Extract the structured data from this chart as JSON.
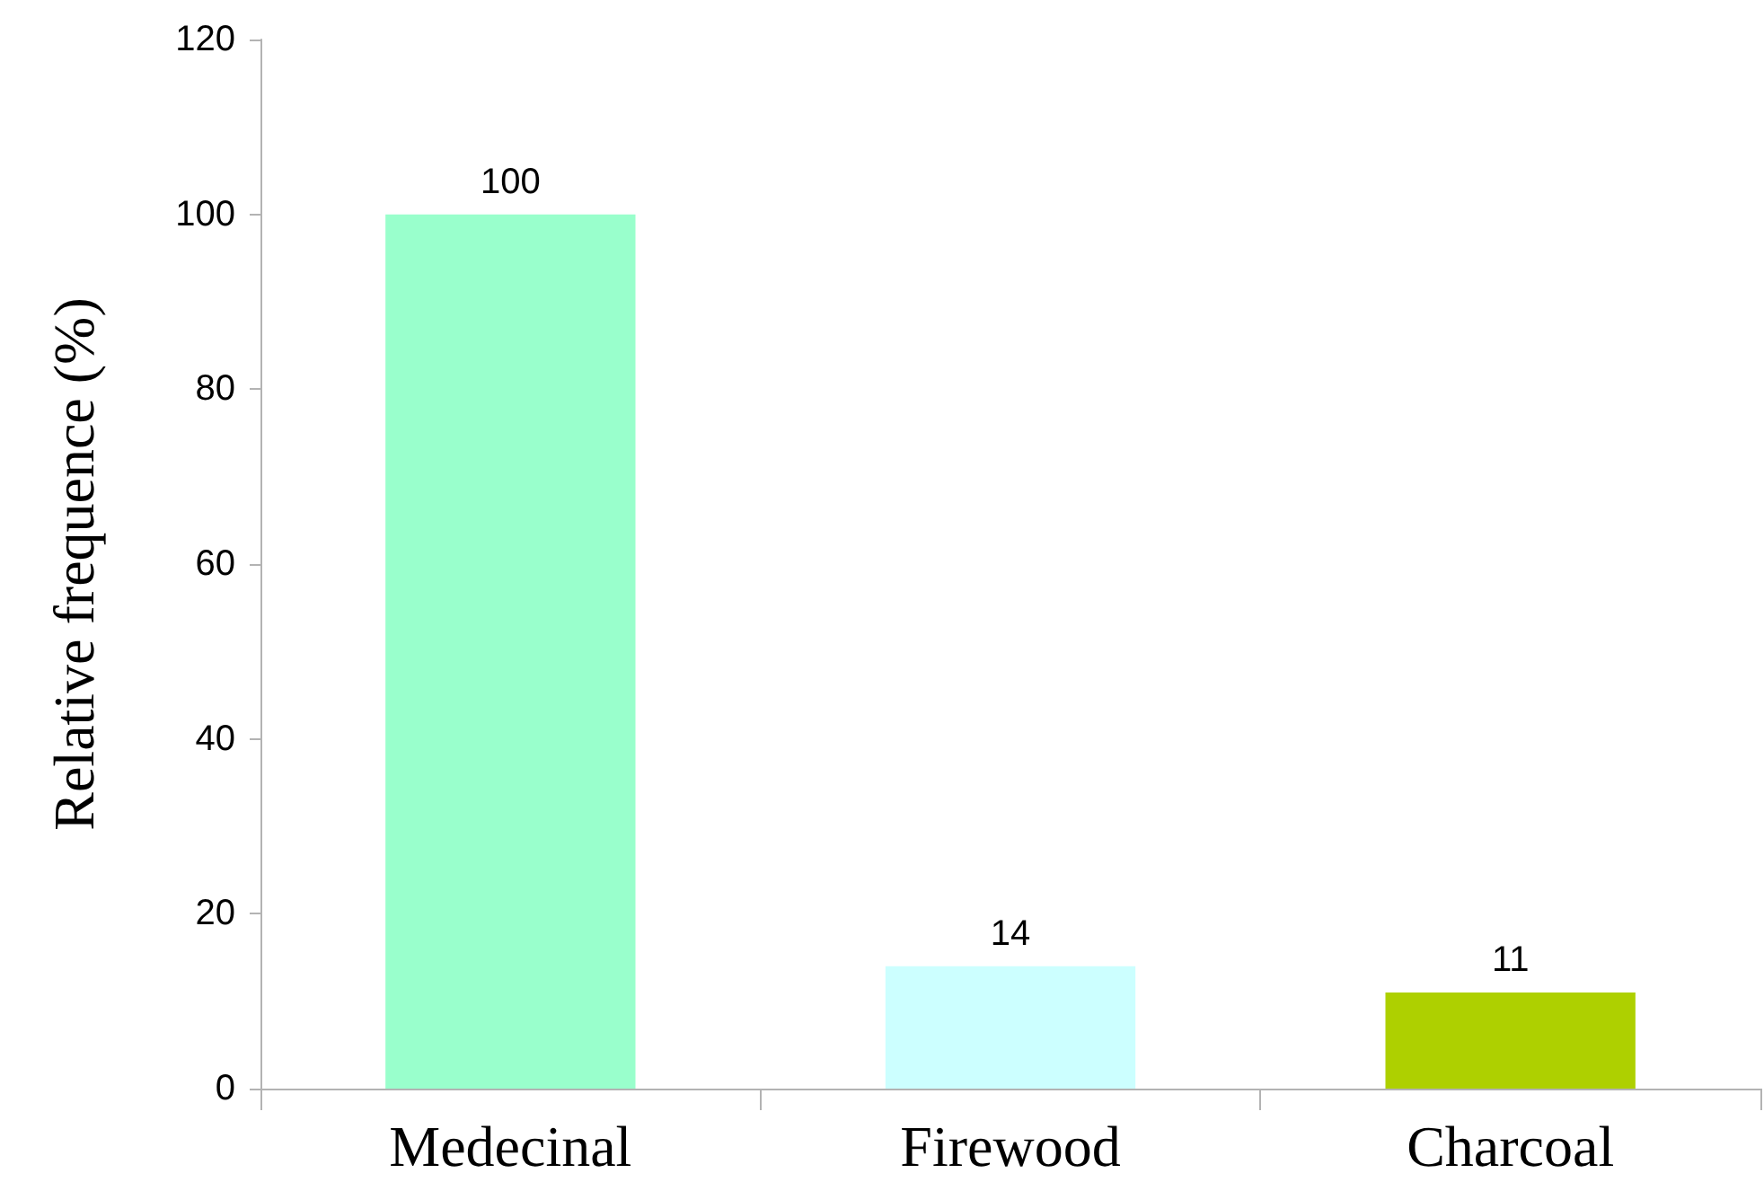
{
  "chart_data": {
    "type": "bar",
    "ylabel": "Relative frequence (%)",
    "categories": [
      "Medecinal",
      "Firewood",
      "Charcoal"
    ],
    "values": [
      100,
      14,
      11
    ],
    "colors": [
      "#99ffcc",
      "#ccffff",
      "#aed000"
    ],
    "ylim": [
      0,
      120
    ],
    "yticks": [
      0,
      20,
      40,
      60,
      80,
      100,
      120
    ],
    "grid": false,
    "data_labels": true
  }
}
